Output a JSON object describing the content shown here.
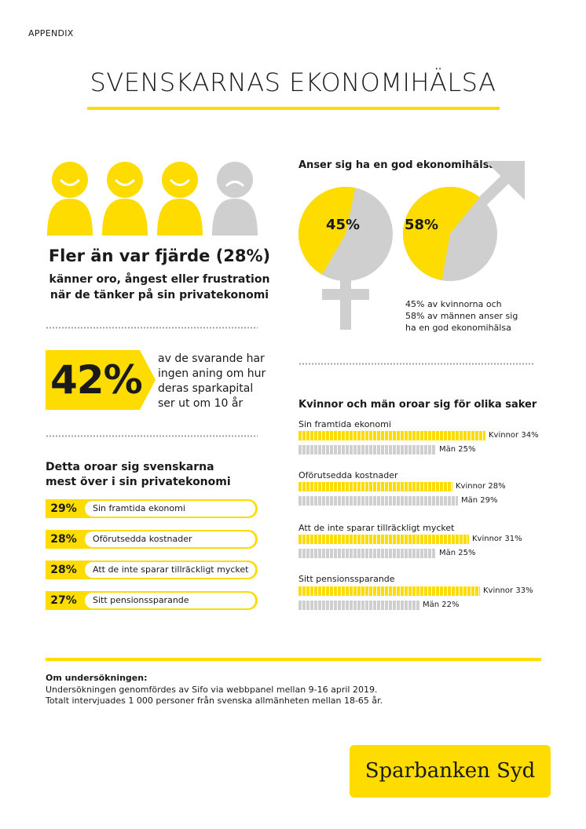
{
  "header": {
    "appendix": "APPENDIX",
    "title": "SVENSKARNAS EKONOMIHÄLSA"
  },
  "colors": {
    "accent": "#ffdc00",
    "gray": "#cfcfcf",
    "text": "#1a1a1a"
  },
  "worry_stat": {
    "headline": "Fler än var fjärde (28%)",
    "line1": "känner oro, ångest eller frustration",
    "line2": "när de tänker på sin privatekonomi",
    "figures": [
      {
        "icon": "happy-person-icon"
      },
      {
        "icon": "happy-person-icon"
      },
      {
        "icon": "happy-person-icon"
      },
      {
        "icon": "sad-person-icon"
      }
    ]
  },
  "savings_stat": {
    "value": "42%",
    "lines": [
      "av de svarande har",
      "ingen aning om hur",
      "deras sparkapital",
      "ser ut om 10 år"
    ]
  },
  "worries": {
    "heading_line1": "Detta oroar sig svenskarna",
    "heading_line2": "mest över i sin privatekonomi",
    "items": [
      {
        "pct": "29%",
        "label": "Sin framtida ekonomi"
      },
      {
        "pct": "28%",
        "label": "Oförutsedda kostnader"
      },
      {
        "pct": "28%",
        "label": "Att de inte sparar tillräckligt mycket"
      },
      {
        "pct": "27%",
        "label": "Sitt pensionssparande"
      }
    ]
  },
  "health": {
    "heading": "Anser sig ha en god ekonomihälsa",
    "women": {
      "label": "45%",
      "value": 45,
      "icon": "female-symbol-icon"
    },
    "men": {
      "label": "58%",
      "value": 58,
      "icon": "male-symbol-icon"
    },
    "note_lines": [
      "45% av kvinnorna och",
      "58% av männen anser sig",
      "ha en god ekonomihälsa"
    ]
  },
  "gender_worries": {
    "heading": "Kvinnor och män oroar sig för olika saker",
    "categories": [
      {
        "name": "Sin framtida ekonomi",
        "women": 34,
        "women_label": "Kvinnor 34%",
        "men": 25,
        "men_label": "Män 25%"
      },
      {
        "name": "Oförutsedda kostnader",
        "women": 28,
        "women_label": "Kvinnor 28%",
        "men": 29,
        "men_label": "Män 29%"
      },
      {
        "name": "Att de inte sparar tillräckligt mycket",
        "women": 31,
        "women_label": "Kvinnor 31%",
        "men": 25,
        "men_label": "Män 25%"
      },
      {
        "name": "Sitt pensionssparande",
        "women": 33,
        "women_label": "Kvinnor 33%",
        "men": 22,
        "men_label": "Män 22%"
      }
    ]
  },
  "footer": {
    "heading": "Om undersökningen:",
    "line1": "Undersökningen genomfördes av Sifo via webbpanel mellan 9-16 april 2019.",
    "line2": "Totalt intervjuades 1 000 personer från svenska allmänheten mellan 18-65 år."
  },
  "logo": {
    "text": "Sparbanken Syd"
  }
}
